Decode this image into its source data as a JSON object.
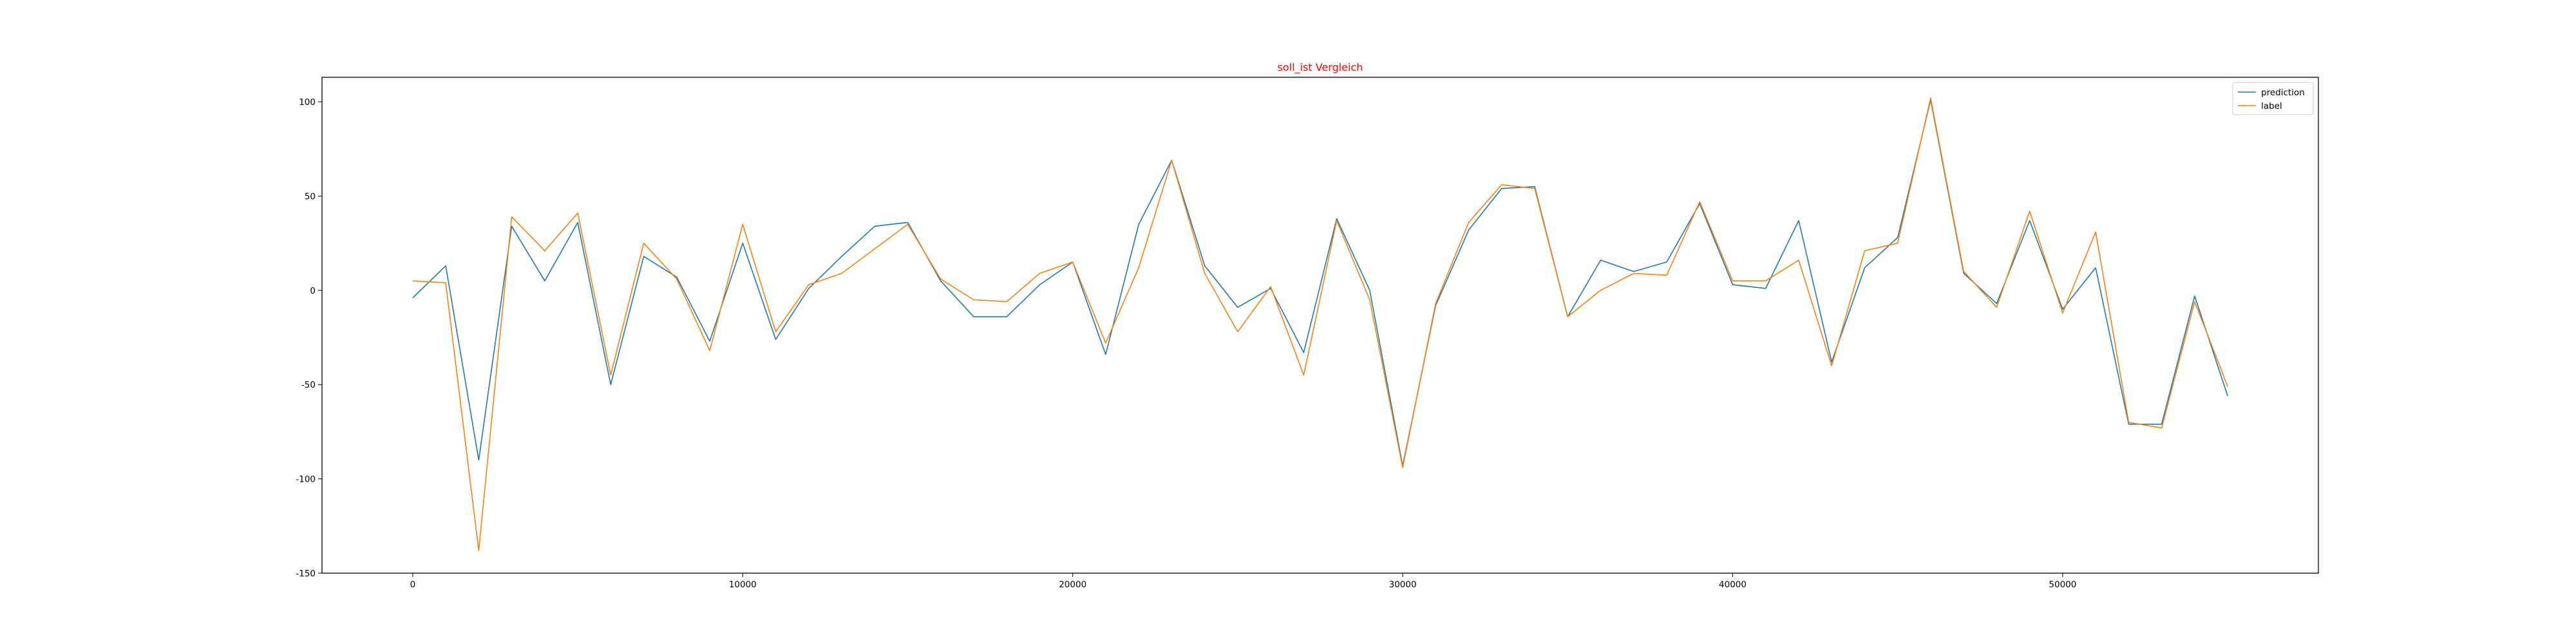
{
  "chart_data": {
    "type": "line",
    "title": "soll_ist Vergleich",
    "title_color": "#ff0000",
    "xlabel": "",
    "ylabel": "",
    "xlim": [
      -2750,
      57750
    ],
    "ylim": [
      -150,
      113
    ],
    "xticks": [
      0,
      10000,
      20000,
      30000,
      40000,
      50000
    ],
    "yticks": [
      -150,
      -100,
      -50,
      0,
      50,
      100
    ],
    "grid": false,
    "legend_position": "upper right",
    "x": [
      0,
      1000,
      2000,
      3000,
      4000,
      5000,
      6000,
      7000,
      8000,
      9000,
      10000,
      11000,
      12000,
      13000,
      14000,
      15000,
      16000,
      17000,
      18000,
      19000,
      20000,
      21000,
      22000,
      23000,
      24000,
      25000,
      26000,
      27000,
      28000,
      29000,
      30000,
      31000,
      32000,
      33000,
      34000,
      35000,
      36000,
      37000,
      38000,
      39000,
      40000,
      41000,
      42000,
      43000,
      44000,
      45000,
      46000,
      47000,
      48000,
      49000,
      50000,
      51000,
      52000,
      53000,
      54000,
      55000
    ],
    "series": [
      {
        "name": "prediction",
        "color": "#1f77b4",
        "values": [
          -4,
          13,
          -90,
          34,
          5,
          36,
          -50,
          18,
          7,
          -27,
          25,
          -26,
          1,
          18,
          34,
          36,
          5,
          -14,
          -14,
          3,
          15,
          -34,
          35,
          69,
          13,
          -9,
          1,
          -33,
          38,
          0,
          -93,
          -8,
          32,
          54,
          55,
          -14,
          16,
          10,
          15,
          46,
          3,
          1,
          37,
          -38,
          12,
          28,
          101,
          9,
          -7,
          37,
          -10,
          12,
          -71,
          -71,
          -3,
          -56
        ]
      },
      {
        "name": "label",
        "color": "#ff7f0e",
        "values": [
          5,
          4,
          -138,
          39,
          21,
          41,
          -45,
          25,
          6,
          -32,
          35,
          -22,
          3,
          9,
          22,
          35,
          6,
          -5,
          -6,
          9,
          15,
          -28,
          12,
          69,
          9,
          -22,
          2,
          -45,
          37,
          -5,
          -94,
          -7,
          36,
          56,
          54,
          -14,
          0,
          9,
          8,
          47,
          5,
          5,
          16,
          -40,
          21,
          25,
          102,
          10,
          -9,
          42,
          -12,
          31,
          -70,
          -73,
          -6,
          -51
        ]
      }
    ]
  }
}
